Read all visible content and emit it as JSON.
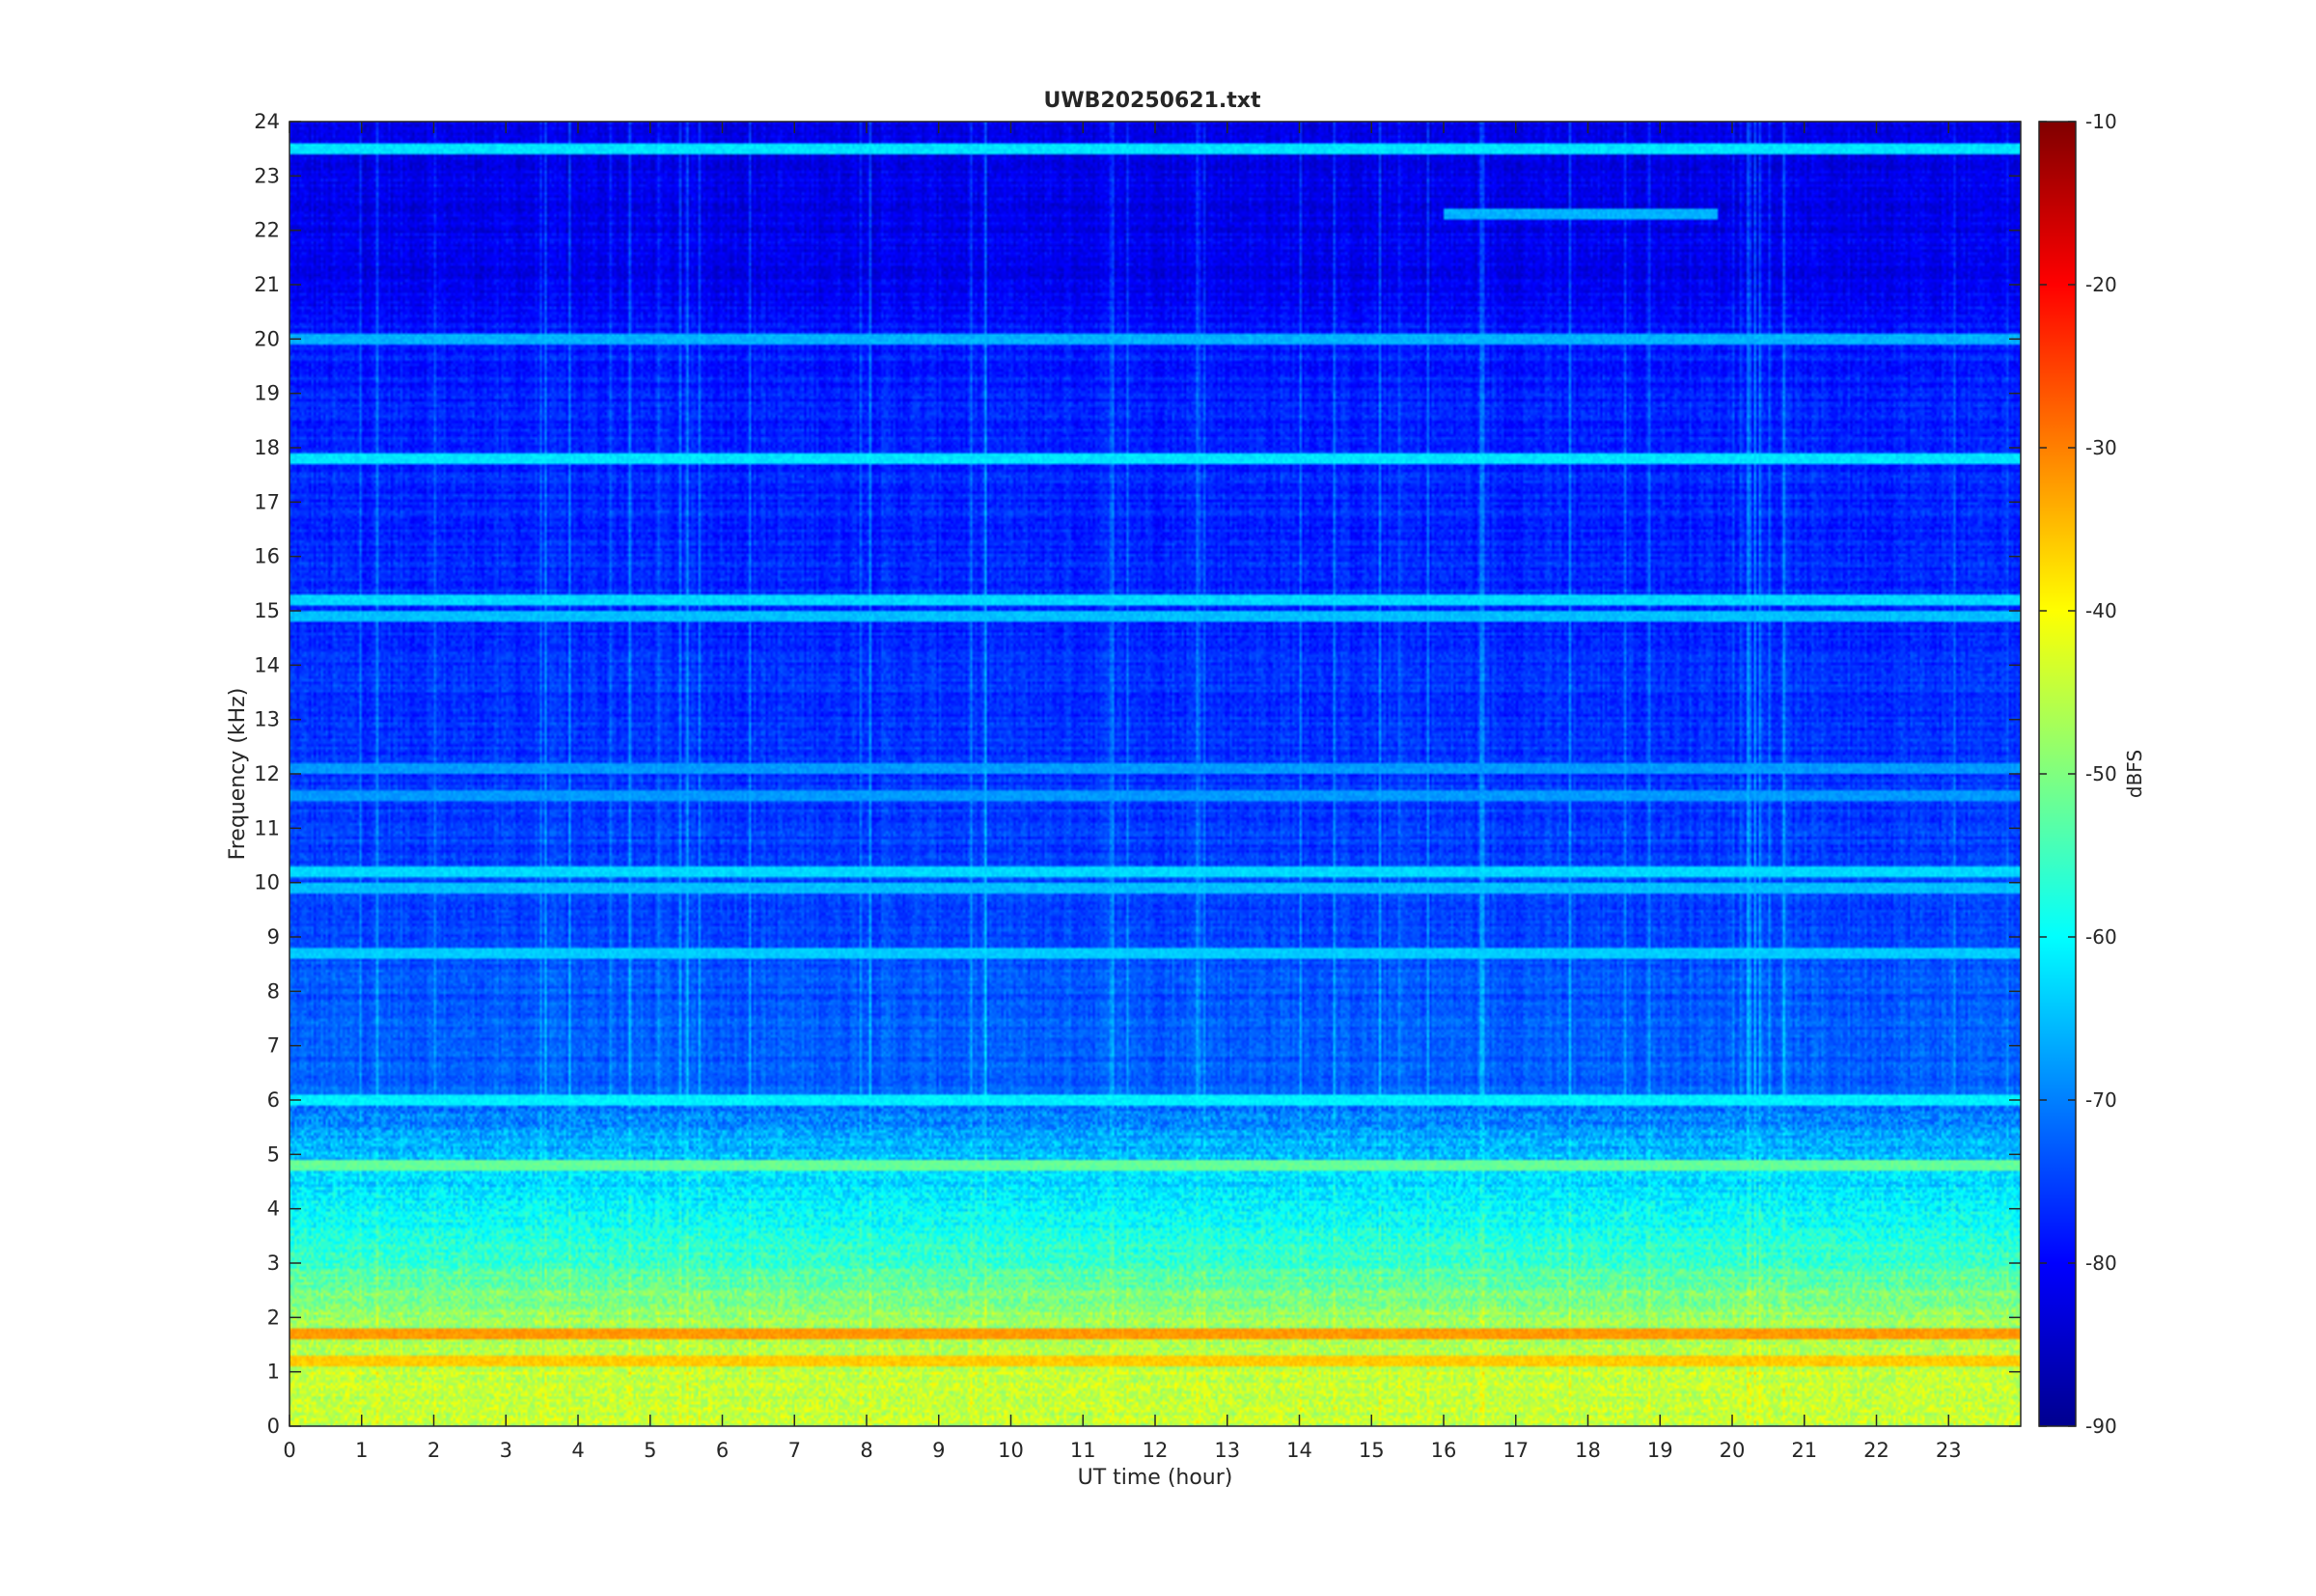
{
  "chart_data": {
    "type": "heatmap",
    "title": "UWB20250621.txt",
    "xlabel": "UT time (hour)",
    "ylabel": "Frequency (kHz)",
    "xlim": [
      0,
      24
    ],
    "ylim": [
      0,
      24
    ],
    "x_ticks": [
      "0",
      "1",
      "2",
      "3",
      "4",
      "5",
      "6",
      "7",
      "8",
      "9",
      "10",
      "11",
      "12",
      "13",
      "14",
      "15",
      "16",
      "17",
      "18",
      "19",
      "20",
      "21",
      "22",
      "23"
    ],
    "y_ticks": [
      "0",
      "1",
      "2",
      "3",
      "4",
      "5",
      "6",
      "7",
      "8",
      "9",
      "10",
      "11",
      "12",
      "13",
      "14",
      "15",
      "16",
      "17",
      "18",
      "19",
      "20",
      "21",
      "22",
      "23",
      "24"
    ],
    "colormap": "jet",
    "colorbar": {
      "label": "dBFS",
      "range": [
        -90,
        -10
      ],
      "ticks": [
        "-10",
        "-20",
        "-30",
        "-40",
        "-50",
        "-60",
        "-70",
        "-80",
        "-90"
      ]
    },
    "background_level_profile": [
      {
        "freq_khz": 0,
        "level_dbfs": -45
      },
      {
        "freq_khz": 1,
        "level_dbfs": -44
      },
      {
        "freq_khz": 2,
        "level_dbfs": -48
      },
      {
        "freq_khz": 3,
        "level_dbfs": -55
      },
      {
        "freq_khz": 4,
        "level_dbfs": -60
      },
      {
        "freq_khz": 5,
        "level_dbfs": -65
      },
      {
        "freq_khz": 6,
        "level_dbfs": -72
      },
      {
        "freq_khz": 9,
        "level_dbfs": -74
      },
      {
        "freq_khz": 12,
        "level_dbfs": -76
      },
      {
        "freq_khz": 16,
        "level_dbfs": -77
      },
      {
        "freq_khz": 20,
        "level_dbfs": -78
      },
      {
        "freq_khz": 21,
        "level_dbfs": -81
      },
      {
        "freq_khz": 24,
        "level_dbfs": -82
      }
    ],
    "persistent_lines": [
      {
        "freq_khz": 23.5,
        "level_dbfs": -62
      },
      {
        "freq_khz": 22.3,
        "level_dbfs": -66,
        "x_range": [
          16,
          19.8
        ]
      },
      {
        "freq_khz": 20.0,
        "level_dbfs": -66
      },
      {
        "freq_khz": 17.8,
        "level_dbfs": -62
      },
      {
        "freq_khz": 15.2,
        "level_dbfs": -63
      },
      {
        "freq_khz": 14.9,
        "level_dbfs": -65
      },
      {
        "freq_khz": 12.1,
        "level_dbfs": -68
      },
      {
        "freq_khz": 11.6,
        "level_dbfs": -68
      },
      {
        "freq_khz": 10.2,
        "level_dbfs": -63
      },
      {
        "freq_khz": 9.9,
        "level_dbfs": -65
      },
      {
        "freq_khz": 8.7,
        "level_dbfs": -64
      },
      {
        "freq_khz": 6.0,
        "level_dbfs": -61
      },
      {
        "freq_khz": 4.8,
        "level_dbfs": -52
      },
      {
        "freq_khz": 1.7,
        "level_dbfs": -32
      },
      {
        "freq_khz": 1.2,
        "level_dbfs": -36
      }
    ]
  }
}
